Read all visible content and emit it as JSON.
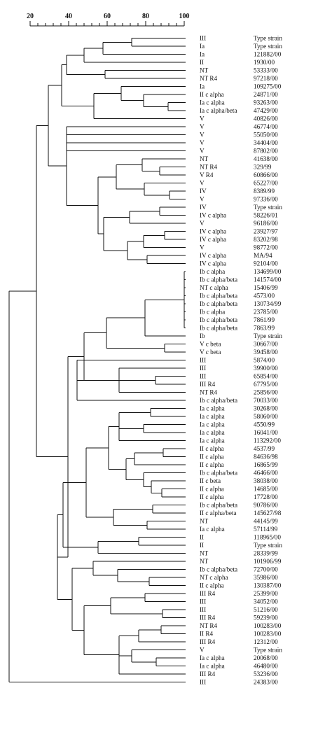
{
  "scale": {
    "ticks": [
      "20",
      "40",
      "60",
      "80",
      "100"
    ],
    "tick_values": [
      20,
      40,
      60,
      80,
      100
    ],
    "minor_step": 4,
    "range": [
      20,
      100
    ]
  },
  "leaves": [
    {
      "serotype": "III",
      "strain": "Type strain"
    },
    {
      "serotype": "Ia",
      "strain": "Type strain"
    },
    {
      "serotype": "Ia",
      "strain": "121882/00"
    },
    {
      "serotype": "II",
      "strain": "1930/00"
    },
    {
      "serotype": "NT",
      "strain": "53333/00"
    },
    {
      "serotype": "NT  R4",
      "strain": "97218/00"
    },
    {
      "serotype": "Ia",
      "strain": "109275/00"
    },
    {
      "serotype": "II c alpha",
      "strain": "24871/00"
    },
    {
      "serotype": "Ia c alpha",
      "strain": "93263/00"
    },
    {
      "serotype": "Ia c alpha/beta",
      "strain": "47429/00"
    },
    {
      "serotype": "V",
      "strain": "40826/00"
    },
    {
      "serotype": "V",
      "strain": "46774/00"
    },
    {
      "serotype": "V",
      "strain": "55050/00"
    },
    {
      "serotype": "V",
      "strain": "34404/00"
    },
    {
      "serotype": "V",
      "strain": "87802/00"
    },
    {
      "serotype": "NT",
      "strain": "41638/00"
    },
    {
      "serotype": "NT  R4",
      "strain": "329/99"
    },
    {
      "serotype": "V  R4",
      "strain": "60866/00"
    },
    {
      "serotype": "V",
      "strain": "65227/00"
    },
    {
      "serotype": "IV",
      "strain": "8389/99"
    },
    {
      "serotype": "V",
      "strain": "97336/00"
    },
    {
      "serotype": "IV",
      "strain": "Type strain"
    },
    {
      "serotype": "IV c alpha",
      "strain": "58226/01"
    },
    {
      "serotype": "V",
      "strain": "96186/00"
    },
    {
      "serotype": "IV c alpha",
      "strain": "23927/97"
    },
    {
      "serotype": "IV c alpha",
      "strain": "83202/98"
    },
    {
      "serotype": "V",
      "strain": "98772/00"
    },
    {
      "serotype": "IV c alpha",
      "strain": "MA/94"
    },
    {
      "serotype": "IV c alpha",
      "strain": "92104/00"
    },
    {
      "serotype": "Ib c alpha",
      "strain": "134699/00"
    },
    {
      "serotype": "Ib c alpha/beta",
      "strain": "141574/00"
    },
    {
      "serotype": "NT c alpha",
      "strain": "15406/99"
    },
    {
      "serotype": "Ib c alpha/beta",
      "strain": "4573/00"
    },
    {
      "serotype": "Ib c alpha/beta",
      "strain": "130734/99"
    },
    {
      "serotype": "Ib c alpha",
      "strain": "23785/00"
    },
    {
      "serotype": "Ib c alpha/beta",
      "strain": "7861/99"
    },
    {
      "serotype": "Ib c alpha/beta",
      "strain": "7863/99"
    },
    {
      "serotype": "Ib",
      "strain": "Type strain"
    },
    {
      "serotype": "V c beta",
      "strain": "30667/00"
    },
    {
      "serotype": "V c beta",
      "strain": "39458/00"
    },
    {
      "serotype": "III",
      "strain": "5874/00"
    },
    {
      "serotype": "III",
      "strain": "39900/00"
    },
    {
      "serotype": "III",
      "strain": "65854/00"
    },
    {
      "serotype": "III  R4",
      "strain": "67795/00"
    },
    {
      "serotype": "NT  R4",
      "strain": "25856/00"
    },
    {
      "serotype": "Ib c alpha/beta",
      "strain": "70033/00"
    },
    {
      "serotype": "Ia c alpha",
      "strain": "30268/00"
    },
    {
      "serotype": "Ia c alpha",
      "strain": "58060/00"
    },
    {
      "serotype": "Ia c alpha",
      "strain": "4550/99"
    },
    {
      "serotype": "Ia c alpha",
      "strain": "16041/00"
    },
    {
      "serotype": "Ia c alpha",
      "strain": "113292/00"
    },
    {
      "serotype": "II c alpha",
      "strain": "4537/99"
    },
    {
      "serotype": "II c alpha",
      "strain": "84636/98"
    },
    {
      "serotype": "II c alpha",
      "strain": "16865/99"
    },
    {
      "serotype": "Ib c alpha/beta",
      "strain": "46466/00"
    },
    {
      "serotype": "II c beta",
      "strain": "38038/00"
    },
    {
      "serotype": "II c alpha",
      "strain": "14685/00"
    },
    {
      "serotype": "II c alpha",
      "strain": "17728/00"
    },
    {
      "serotype": "Ib c alpha/beta",
      "strain": "90786/00"
    },
    {
      "serotype": "II c alpha/beta",
      "strain": "145627/98"
    },
    {
      "serotype": "NT",
      "strain": "44145/99"
    },
    {
      "serotype": "Ia c alpha",
      "strain": "57114/99"
    },
    {
      "serotype": "II",
      "strain": "118965/00"
    },
    {
      "serotype": "II",
      "strain": "Type strain"
    },
    {
      "serotype": "NT",
      "strain": "28339/99"
    },
    {
      "serotype": "NT",
      "strain": "101906/99"
    },
    {
      "serotype": "Ib c alpha/beta",
      "strain": "72700/00"
    },
    {
      "serotype": "NT c alpha",
      "strain": "35986/00"
    },
    {
      "serotype": "II c alpha",
      "strain": "130387/00"
    },
    {
      "serotype": "III  R4",
      "strain": "25399/00"
    },
    {
      "serotype": "III",
      "strain": "34052/00"
    },
    {
      "serotype": "III",
      "strain": "51216/00"
    },
    {
      "serotype": "III  R4",
      "strain": "59239/00"
    },
    {
      "serotype": "NT  R4",
      "strain": "100283/00"
    },
    {
      "serotype": "II  R4",
      "strain": "100283/00"
    },
    {
      "serotype": "III  R4",
      "strain": "12312/00"
    },
    {
      "serotype": "V",
      "strain": "Type strain"
    },
    {
      "serotype": "Ia c alpha",
      "strain": "20068/00"
    },
    {
      "serotype": "Ia c alpha",
      "strain": "46480/00"
    },
    {
      "serotype": "III  R4",
      "strain": "53236/00"
    },
    {
      "serotype": "III",
      "strain": "24383/00"
    }
  ]
}
